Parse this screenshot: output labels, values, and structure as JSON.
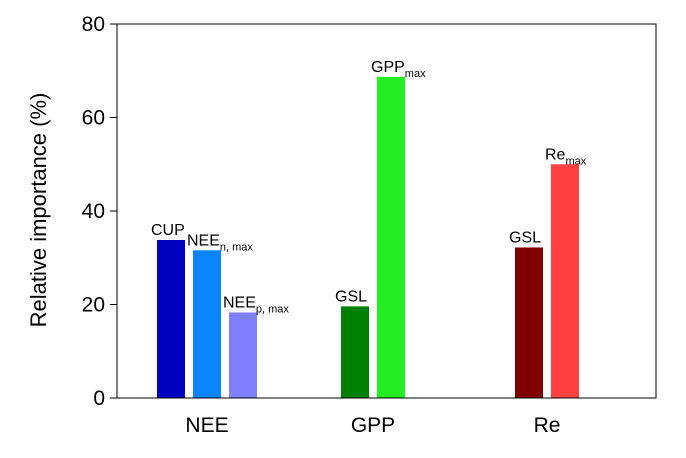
{
  "chart_data": {
    "type": "bar",
    "title": "",
    "xlabel": "",
    "ylabel": "Relative importance (%)",
    "ylim": [
      0,
      80
    ],
    "yticks": [
      "0",
      "20",
      "40",
      "60",
      "80"
    ],
    "grid": false,
    "groups": [
      {
        "name": "NEE",
        "bars": [
          {
            "label": "CUP",
            "sub": "",
            "value": 33.8,
            "color": "#0000c0"
          },
          {
            "label": "NEE",
            "sub": "n, max",
            "value": 31.6,
            "color": "#0a84ff"
          },
          {
            "label": "NEE",
            "sub": "p, max",
            "value": 18.3,
            "color": "#8080ff"
          }
        ]
      },
      {
        "name": "GPP",
        "bars": [
          {
            "label": "GSL",
            "sub": "",
            "value": 19.6,
            "color": "#008000"
          },
          {
            "label": "GPP",
            "sub": "max",
            "value": 68.7,
            "color": "#22ee22"
          }
        ]
      },
      {
        "name": "Re",
        "bars": [
          {
            "label": "GSL",
            "sub": "",
            "value": 32.2,
            "color": "#800000"
          },
          {
            "label": "Re",
            "sub": "max",
            "value": 50.0,
            "color": "#ff4040"
          }
        ]
      }
    ]
  }
}
